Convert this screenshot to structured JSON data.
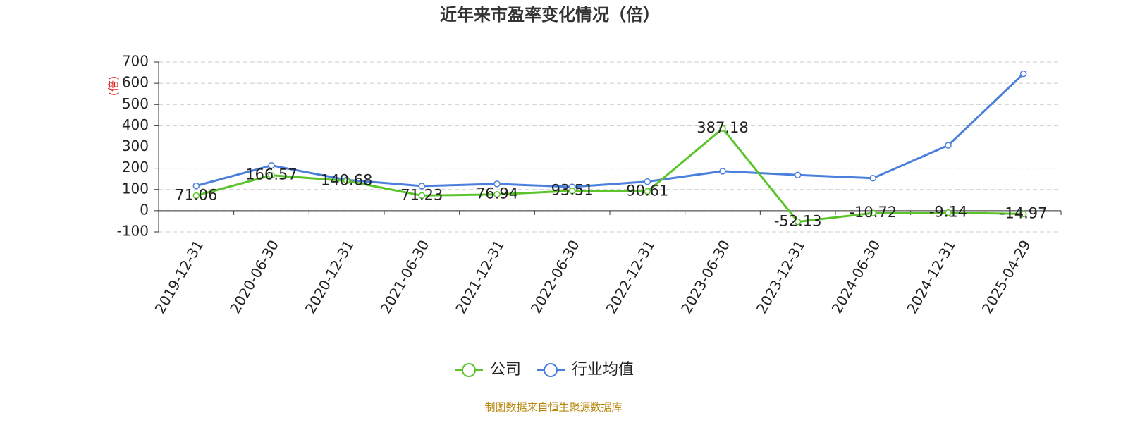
{
  "chart_data": {
    "type": "line",
    "title": "近年来市盈率变化情况（倍）",
    "y_label": "(倍)",
    "categories": [
      "2019-12-31",
      "2020-06-30",
      "2020-12-31",
      "2021-06-30",
      "2021-12-31",
      "2022-06-30",
      "2022-12-31",
      "2023-06-30",
      "2023-12-31",
      "2024-06-30",
      "2024-12-31",
      "2025-04-29"
    ],
    "series": [
      {
        "name": "公司",
        "color": "#5cc42b",
        "values": [
          71.06,
          166.57,
          140.68,
          71.23,
          76.94,
          93.51,
          90.61,
          387.18,
          -52.13,
          -10.72,
          -9.14,
          -14.97
        ],
        "labels": true
      },
      {
        "name": "行业均值",
        "color": "#4a7fdc",
        "values": [
          117,
          213,
          145,
          116,
          126,
          112,
          137,
          186,
          168,
          153,
          308,
          645
        ],
        "labels": false
      }
    ],
    "ylim": [
      -100,
      700
    ],
    "yticks": [
      -100,
      0,
      100,
      200,
      300,
      400,
      500,
      600,
      700
    ],
    "grid": true,
    "source": "制图数据来自恒生聚源数据库"
  }
}
